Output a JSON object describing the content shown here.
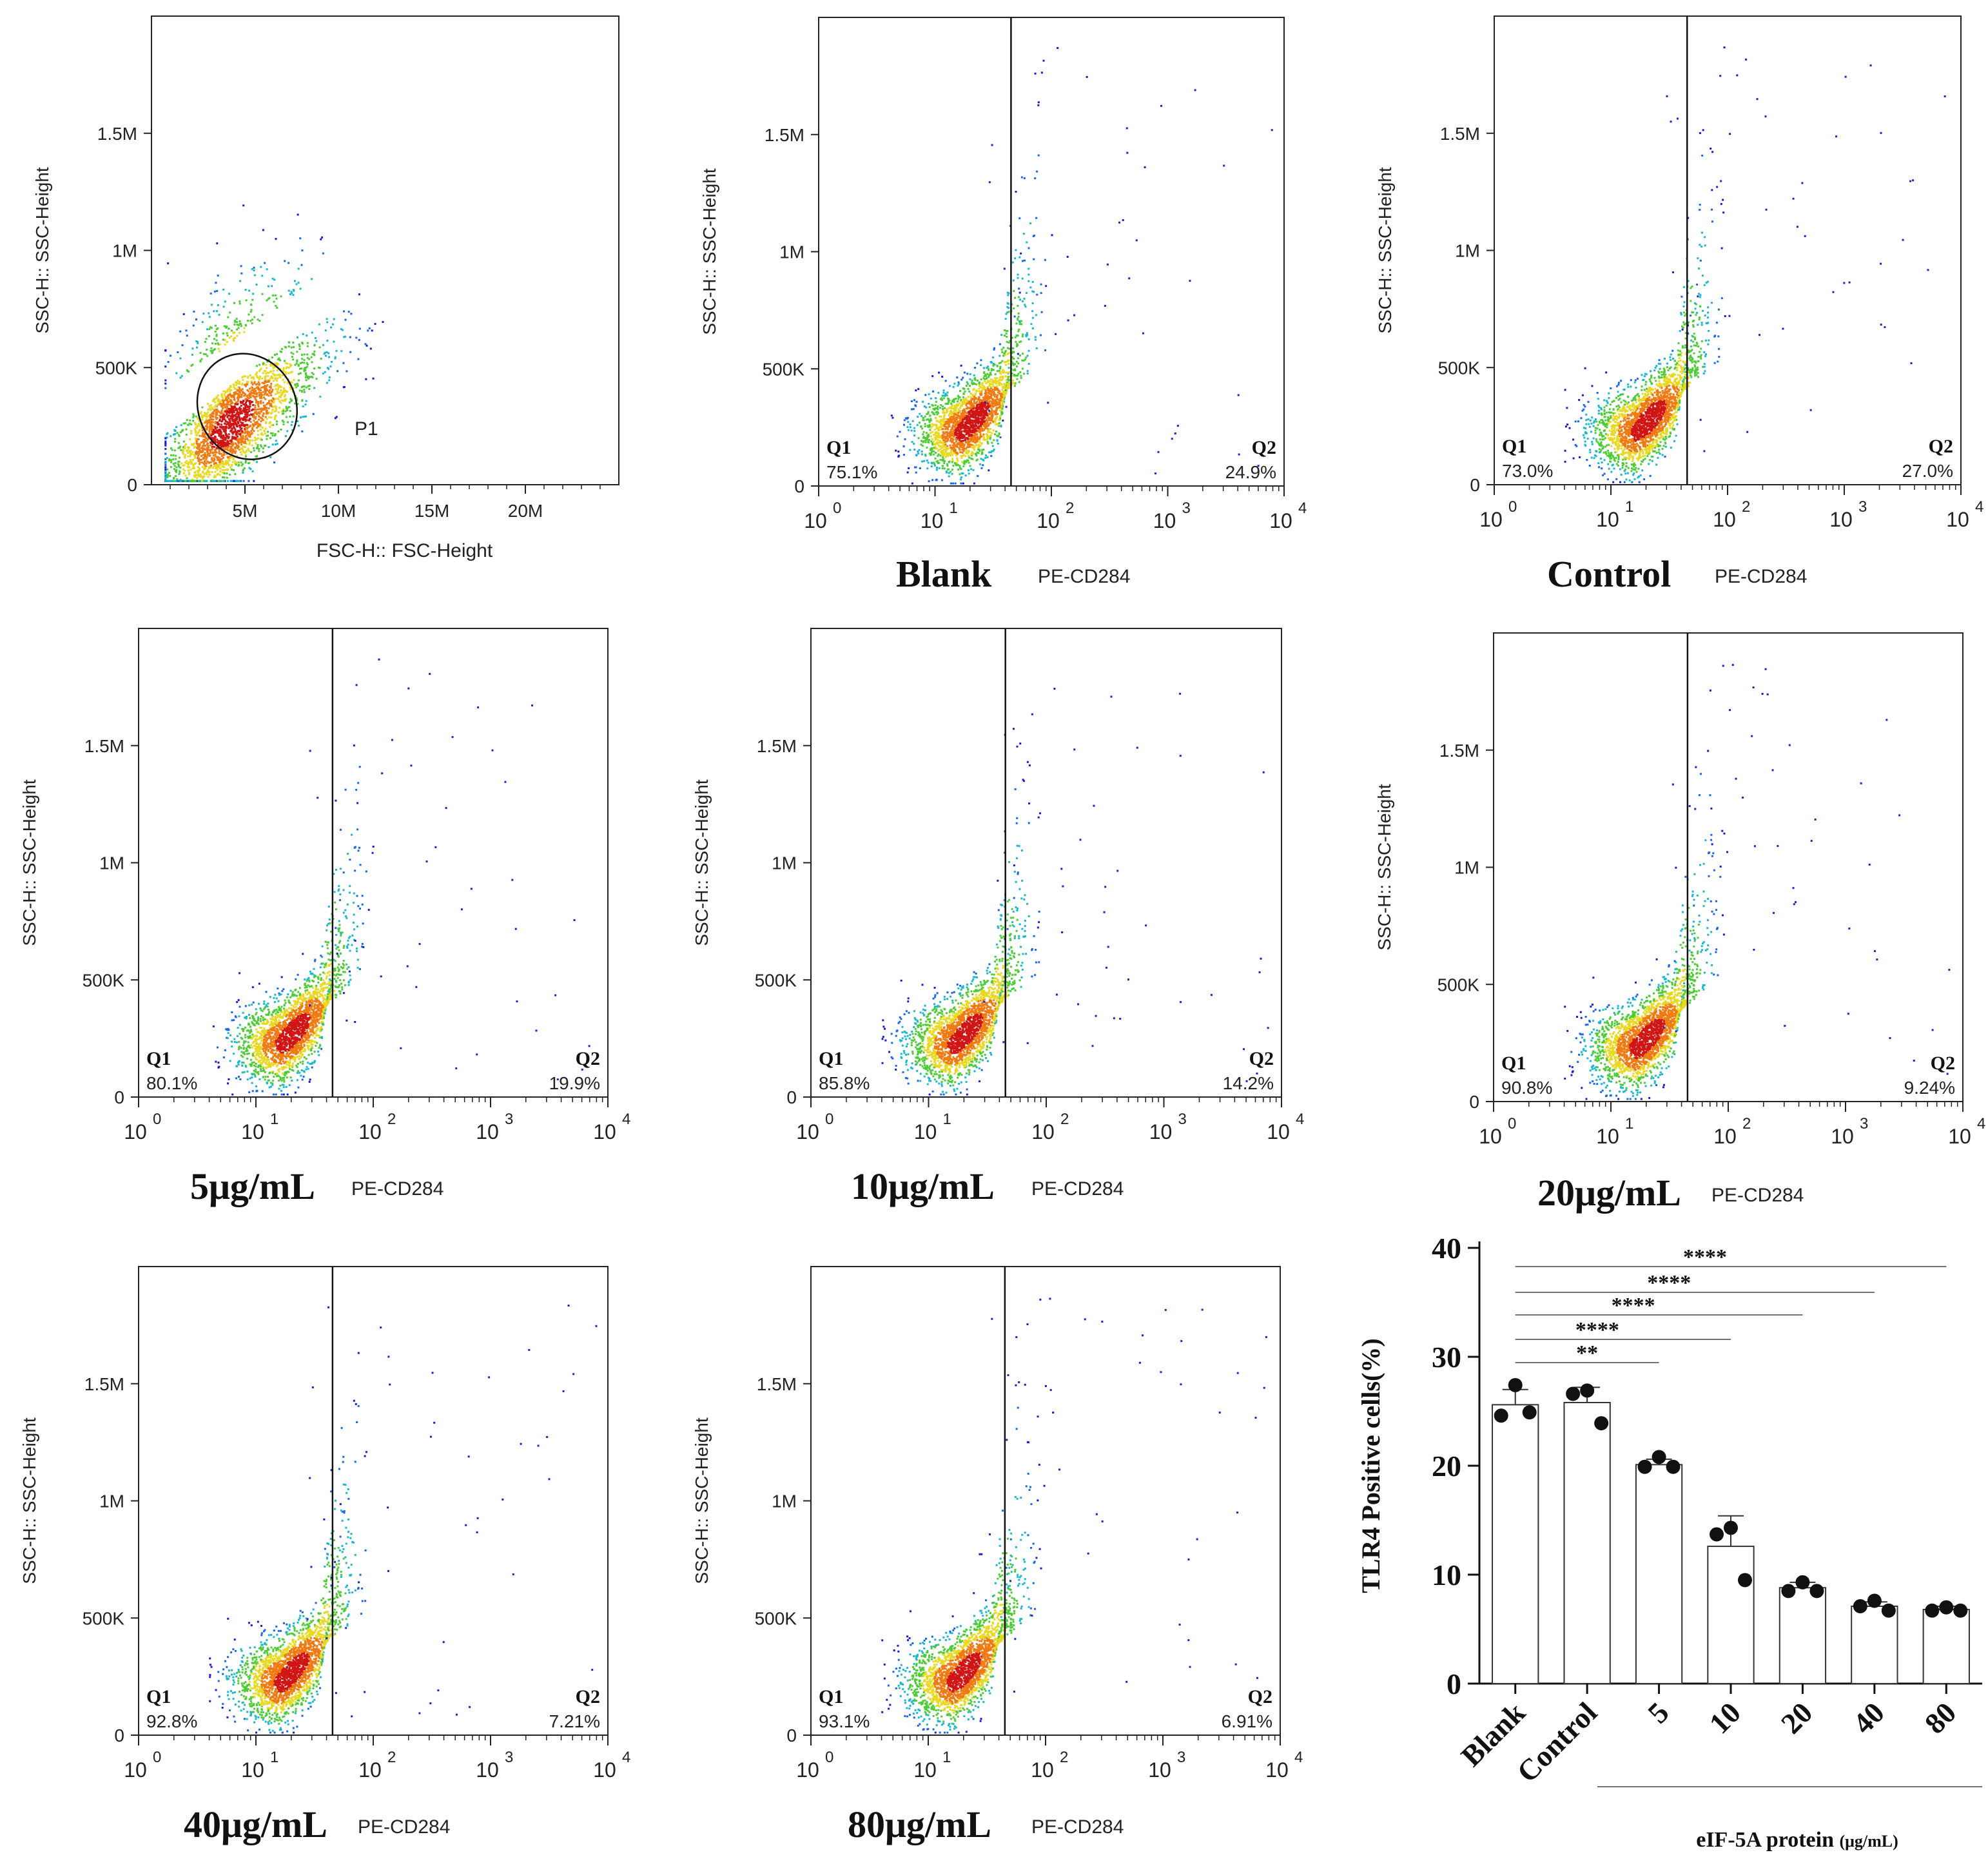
{
  "chart_data": [
    {
      "type": "scatter",
      "id": "fsc-ssc",
      "xlabel": "FSC-H:: FSC-Height",
      "ylabel": "SSC-H:: SSC-Height",
      "xticks": [
        "5M",
        "10M",
        "15M",
        "20M"
      ],
      "yticks": [
        "0",
        "500K",
        "1M",
        "1.5M"
      ],
      "xlim": [
        0,
        25000000
      ],
      "ylim": [
        0,
        2000000
      ],
      "gate": {
        "label": "P1",
        "center": [
          4600000,
          320000
        ],
        "radius": [
          4200000,
          320000
        ]
      }
    },
    {
      "type": "scatter",
      "id": "blank",
      "group": "Blank",
      "xlabel": "PE-CD284",
      "ylabel": "SSC-H:: SSC-Height",
      "xscale": "log",
      "xlim": [
        1,
        10000
      ],
      "ylim": [
        0,
        2000000
      ],
      "yticks": [
        "0",
        "500K",
        "1M",
        "1.5M"
      ],
      "threshold": 45,
      "q1_label": "Q1",
      "q2_label": "Q2",
      "q1": "75.1%",
      "q2": "24.9%"
    },
    {
      "type": "scatter",
      "id": "control",
      "group": "Control",
      "xlabel": "PE-CD284",
      "ylabel": "SSC-H:: SSC-Height",
      "xscale": "log",
      "xlim": [
        1,
        10000
      ],
      "ylim": [
        0,
        2000000
      ],
      "yticks": [
        "0",
        "500K",
        "1M",
        "1.5M"
      ],
      "threshold": 45,
      "q1_label": "Q1",
      "q2_label": "Q2",
      "q1": "73.0%",
      "q2": "27.0%"
    },
    {
      "type": "scatter",
      "id": "d5",
      "group": "5μg/mL",
      "xlabel": "PE-CD284",
      "ylabel": "SSC-H:: SSC-Height",
      "xscale": "log",
      "xlim": [
        1,
        10000
      ],
      "ylim": [
        0,
        2000000
      ],
      "yticks": [
        "0",
        "500K",
        "1M",
        "1.5M"
      ],
      "threshold": 45,
      "q1_label": "Q1",
      "q2_label": "Q2",
      "q1": "80.1%",
      "q2": "19.9%"
    },
    {
      "type": "scatter",
      "id": "d10",
      "group": "10μg/mL",
      "xlabel": "PE-CD284",
      "ylabel": "SSC-H:: SSC-Height",
      "xscale": "log",
      "xlim": [
        1,
        10000
      ],
      "ylim": [
        0,
        2000000
      ],
      "yticks": [
        "0",
        "500K",
        "1M",
        "1.5M"
      ],
      "threshold": 45,
      "q1_label": "Q1",
      "q2_label": "Q2",
      "q1": "85.8%",
      "q2": "14.2%"
    },
    {
      "type": "scatter",
      "id": "d20",
      "group": "20μg/mL",
      "xlabel": "PE-CD284",
      "ylabel": "SSC-H:: SSC-Height",
      "xscale": "log",
      "xlim": [
        1,
        10000
      ],
      "ylim": [
        0,
        2000000
      ],
      "yticks": [
        "0",
        "500K",
        "1M",
        "1.5M"
      ],
      "threshold": 45,
      "q1_label": "Q1",
      "q2_label": "Q2",
      "q1": "90.8%",
      "q2": "9.24%"
    },
    {
      "type": "scatter",
      "id": "d40",
      "group": "40μg/mL",
      "xlabel": "PE-CD284",
      "ylabel": "SSC-H:: SSC-Height",
      "xscale": "log",
      "xlim": [
        1,
        10000
      ],
      "ylim": [
        0,
        2000000
      ],
      "yticks": [
        "0",
        "500K",
        "1M",
        "1.5M"
      ],
      "threshold": 45,
      "q1_label": "Q1",
      "q2_label": "Q2",
      "q1": "92.8%",
      "q2": "7.21%"
    },
    {
      "type": "scatter",
      "id": "d80",
      "group": "80μg/mL",
      "xlabel": "PE-CD284",
      "ylabel": "SSC-H:: SSC-Height",
      "xscale": "log",
      "xlim": [
        1,
        10000
      ],
      "ylim": [
        0,
        2000000
      ],
      "yticks": [
        "0",
        "500K",
        "1M",
        "1.5M"
      ],
      "threshold": 45,
      "q1_label": "Q1",
      "q2_label": "Q2",
      "q1": "93.1%",
      "q2": "6.91%"
    },
    {
      "type": "bar",
      "id": "tlr4-bar",
      "categories": [
        "Blank",
        "Control",
        "5",
        "10",
        "20",
        "40",
        "80"
      ],
      "values": [
        25.6,
        25.8,
        20.1,
        12.6,
        8.8,
        7.1,
        6.8
      ],
      "errors": [
        1.4,
        1.4,
        0.5,
        2.8,
        0.5,
        0.4,
        0.3
      ],
      "points": [
        [
          27.4,
          24.6,
          24.9
        ],
        [
          26.9,
          26.6,
          23.9
        ],
        [
          20.8,
          19.9,
          19.9
        ],
        [
          14.3,
          13.7,
          9.5
        ],
        [
          9.3,
          8.5,
          8.5
        ],
        [
          7.6,
          7.1,
          6.7
        ],
        [
          7.0,
          6.7,
          6.7
        ]
      ],
      "ylabel": "TLR4 Positive cells(%)",
      "xlabel": "eIF-5A protein",
      "xlabel_unit": "(μg/mL)",
      "ylim": [
        0,
        40
      ],
      "yticks": [
        0,
        10,
        20,
        30,
        40
      ],
      "significance": [
        {
          "from": 0,
          "to": 2,
          "label": "**"
        },
        {
          "from": 0,
          "to": 3,
          "label": "****"
        },
        {
          "from": 0,
          "to": 4,
          "label": "****"
        },
        {
          "from": 0,
          "to": 5,
          "label": "****"
        },
        {
          "from": 0,
          "to": 6,
          "label": "****"
        }
      ]
    }
  ]
}
